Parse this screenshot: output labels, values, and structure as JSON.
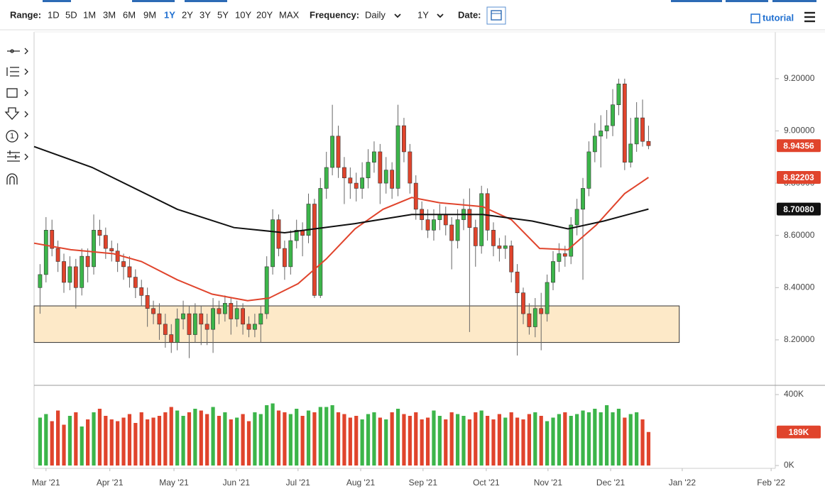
{
  "toolbar": {
    "range_label": "Range:",
    "ranges": [
      "1D",
      "5D",
      "1M",
      "3M",
      "6M",
      "9M",
      "1Y",
      "2Y",
      "3Y",
      "5Y",
      "10Y",
      "20Y",
      "MAX"
    ],
    "frequency_label": "Frequency:",
    "frequency": "Daily",
    "period": "1Y",
    "date_label": "Date:",
    "tutorial": "tutorial"
  },
  "chart_data": {
    "type": "candlestick",
    "x": [
      -2,
      0,
      2,
      4,
      6,
      8,
      10,
      12,
      14,
      16,
      18,
      20,
      22,
      24,
      26,
      28,
      30,
      32,
      34,
      36,
      38,
      40,
      42,
      44,
      46,
      48,
      50,
      52,
      54,
      56,
      58,
      60,
      62,
      64,
      66,
      68,
      70,
      72,
      74,
      76,
      78,
      80,
      82,
      84,
      86,
      88,
      90,
      92,
      94,
      96,
      98,
      100,
      102,
      104,
      106,
      108,
      110,
      112,
      114,
      116,
      118,
      120,
      122,
      124,
      126,
      128,
      130,
      132,
      134,
      136,
      138,
      140,
      142,
      144,
      146,
      148,
      150,
      152,
      154,
      156,
      158,
      160,
      162,
      164,
      166,
      168,
      170,
      172,
      174,
      176,
      178,
      180,
      182,
      184,
      186,
      188,
      190,
      192,
      194,
      196,
      198,
      200,
      202
    ],
    "open": [
      8.4,
      8.45,
      8.62,
      8.55,
      8.5,
      8.42,
      8.48,
      8.4,
      8.52,
      8.48,
      8.62,
      8.6,
      8.55,
      8.54,
      8.5,
      8.48,
      8.44,
      8.4,
      8.37,
      8.32,
      8.3,
      8.26,
      8.22,
      8.19,
      8.28,
      8.3,
      8.22,
      8.3,
      8.26,
      8.24,
      8.32,
      8.3,
      8.34,
      8.28,
      8.32,
      8.26,
      8.24,
      8.26,
      8.3,
      8.48,
      8.66,
      8.55,
      8.48,
      8.58,
      8.62,
      8.6,
      8.72,
      8.37,
      8.78,
      8.86,
      8.98,
      8.86,
      8.82,
      8.8,
      8.78,
      8.82,
      8.88,
      8.92,
      8.8,
      8.85,
      8.78,
      9.02,
      8.92,
      8.8,
      8.7,
      8.66,
      8.62,
      8.66,
      8.68,
      8.64,
      8.58,
      8.66,
      8.7,
      8.63,
      8.56,
      8.76,
      8.62,
      8.56,
      8.55,
      8.56,
      8.46,
      8.38,
      8.3,
      8.25,
      8.32,
      8.3,
      8.42,
      8.5,
      8.53,
      8.52,
      8.64,
      8.7,
      8.78,
      8.92,
      8.98,
      9.0,
      9.02,
      9.1,
      9.18,
      8.88,
      8.95,
      9.05,
      8.96
    ],
    "high": [
      8.49,
      8.67,
      8.66,
      8.58,
      8.53,
      8.52,
      8.51,
      8.55,
      8.55,
      8.68,
      8.66,
      8.63,
      8.58,
      8.57,
      8.53,
      8.52,
      8.47,
      8.43,
      8.4,
      8.35,
      8.34,
      8.3,
      8.26,
      8.32,
      8.35,
      8.33,
      8.34,
      8.33,
      8.3,
      8.36,
      8.35,
      8.37,
      8.36,
      8.35,
      8.34,
      8.29,
      8.3,
      8.33,
      8.52,
      8.7,
      8.68,
      8.58,
      8.62,
      8.66,
      8.65,
      8.76,
      8.74,
      8.82,
      8.92,
      9.1,
      9.02,
      8.9,
      8.86,
      8.84,
      8.88,
      8.93,
      8.96,
      8.95,
      8.9,
      8.88,
      9.1,
      9.05,
      8.95,
      8.83,
      8.73,
      8.7,
      8.7,
      8.72,
      8.71,
      8.67,
      8.7,
      8.74,
      8.78,
      8.66,
      8.79,
      8.78,
      8.65,
      8.59,
      8.6,
      8.58,
      8.49,
      8.4,
      8.34,
      8.36,
      8.38,
      8.45,
      8.54,
      8.57,
      8.56,
      8.67,
      8.74,
      8.82,
      8.96,
      9.03,
      9.06,
      9.08,
      9.16,
      9.2,
      9.2,
      9.05,
      9.11,
      9.12,
      9.02
    ],
    "low": [
      8.3,
      8.42,
      8.52,
      8.46,
      8.38,
      8.39,
      8.32,
      8.37,
      8.42,
      8.45,
      8.56,
      8.51,
      8.5,
      8.46,
      8.43,
      8.4,
      8.36,
      8.33,
      8.25,
      8.26,
      8.2,
      8.17,
      8.15,
      8.16,
      8.24,
      8.13,
      8.19,
      8.18,
      8.18,
      8.15,
      8.26,
      8.27,
      8.22,
      8.25,
      8.22,
      8.21,
      8.21,
      8.19,
      8.28,
      8.45,
      8.52,
      8.43,
      8.45,
      8.55,
      8.52,
      8.57,
      8.36,
      8.36,
      8.74,
      8.83,
      8.82,
      8.72,
      8.74,
      8.73,
      8.74,
      8.78,
      8.84,
      8.72,
      8.76,
      8.74,
      8.75,
      8.88,
      8.76,
      8.66,
      8.62,
      8.59,
      8.58,
      8.62,
      8.6,
      8.47,
      8.55,
      8.62,
      8.23,
      8.48,
      8.53,
      8.58,
      8.52,
      8.5,
      8.51,
      8.42,
      8.14,
      8.26,
      8.22,
      8.21,
      8.16,
      8.27,
      8.39,
      8.46,
      8.48,
      8.49,
      8.6,
      8.43,
      8.75,
      8.88,
      8.86,
      8.97,
      8.98,
      9.06,
      8.85,
      8.86,
      8.92,
      8.94,
      8.93
    ],
    "close": [
      8.45,
      8.62,
      8.55,
      8.5,
      8.42,
      8.48,
      8.4,
      8.52,
      8.48,
      8.62,
      8.6,
      8.55,
      8.54,
      8.5,
      8.48,
      8.44,
      8.4,
      8.37,
      8.32,
      8.3,
      8.26,
      8.22,
      8.19,
      8.28,
      8.3,
      8.22,
      8.3,
      8.26,
      8.24,
      8.32,
      8.3,
      8.34,
      8.28,
      8.32,
      8.26,
      8.24,
      8.26,
      8.3,
      8.48,
      8.66,
      8.55,
      8.48,
      8.58,
      8.62,
      8.6,
      8.72,
      8.37,
      8.78,
      8.86,
      8.98,
      8.86,
      8.82,
      8.8,
      8.78,
      8.82,
      8.88,
      8.92,
      8.8,
      8.85,
      8.78,
      9.02,
      8.92,
      8.8,
      8.7,
      8.66,
      8.62,
      8.66,
      8.68,
      8.64,
      8.58,
      8.66,
      8.7,
      8.63,
      8.56,
      8.76,
      8.62,
      8.56,
      8.55,
      8.56,
      8.46,
      8.38,
      8.3,
      8.25,
      8.32,
      8.3,
      8.42,
      8.5,
      8.53,
      8.52,
      8.64,
      8.7,
      8.78,
      8.92,
      8.98,
      9.0,
      9.02,
      9.1,
      9.18,
      8.88,
      8.95,
      9.05,
      8.96,
      8.94356
    ],
    "volume": [
      270000,
      290000,
      250000,
      310000,
      230000,
      280000,
      300000,
      220000,
      260000,
      300000,
      320000,
      280000,
      260000,
      250000,
      270000,
      290000,
      240000,
      300000,
      260000,
      270000,
      280000,
      300000,
      330000,
      310000,
      280000,
      300000,
      320000,
      310000,
      290000,
      330000,
      280000,
      300000,
      260000,
      270000,
      290000,
      250000,
      300000,
      290000,
      340000,
      350000,
      310000,
      300000,
      290000,
      320000,
      280000,
      310000,
      300000,
      330000,
      330000,
      340000,
      300000,
      290000,
      270000,
      280000,
      260000,
      290000,
      300000,
      270000,
      260000,
      300000,
      320000,
      290000,
      280000,
      300000,
      260000,
      270000,
      310000,
      280000,
      260000,
      300000,
      290000,
      280000,
      260000,
      300000,
      310000,
      280000,
      260000,
      290000,
      270000,
      300000,
      270000,
      260000,
      290000,
      300000,
      280000,
      250000,
      270000,
      290000,
      300000,
      280000,
      290000,
      310000,
      300000,
      320000,
      300000,
      340000,
      300000,
      320000,
      270000,
      290000,
      300000,
      260000,
      189000
    ],
    "up_color": "#3cb54a",
    "down_color": "#e0442c",
    "wick_color": "#666666",
    "series": [
      {
        "color": "#e0442c",
        "x": [
          -4,
          8.3,
          22.6,
          32,
          44,
          55.7,
          67.6,
          74.8,
          84.5,
          94,
          103.6,
          113,
          122.6,
          132,
          146.4,
          156,
          165.5,
          175,
          184.5,
          194,
          202
        ],
        "values": [
          8.57,
          8.545,
          8.53,
          8.5,
          8.43,
          8.375,
          8.35,
          8.36,
          8.415,
          8.51,
          8.625,
          8.7,
          8.745,
          8.725,
          8.71,
          8.66,
          8.55,
          8.545,
          8.64,
          8.76,
          8.82203
        ]
      },
      {
        "color": "#111111",
        "x": [
          -4,
          15.5,
          44,
          63,
          80,
          103.6,
          122.6,
          146.4,
          163,
          175,
          187,
          202
        ],
        "values": [
          8.94,
          8.86,
          8.7,
          8.63,
          8.61,
          8.645,
          8.68,
          8.68,
          8.655,
          8.625,
          8.655,
          8.7008
        ]
      }
    ],
    "zone": {
      "xlim": [
        -4,
        212.3
      ],
      "ylim": [
        8.19,
        8.33
      ],
      "color": "#fde9c8"
    },
    "price_tags": [
      {
        "value": 8.94356,
        "label": "8.94356",
        "color": "#e0442c"
      },
      {
        "value": 8.82203,
        "label": "8.82203",
        "color": "#e0442c"
      },
      {
        "value": 8.7008,
        "label": "8.70080",
        "color": "#111111"
      }
    ],
    "volume_tag": {
      "value": 189000,
      "label": "189K",
      "color": "#e0442c"
    },
    "xlim": [
      -4,
      244.5
    ],
    "xticks": [
      {
        "value": 0,
        "label": "Mar '21"
      },
      {
        "value": 21.4,
        "label": "Apr '21"
      },
      {
        "value": 42.9,
        "label": "May '21"
      },
      {
        "value": 63.8,
        "label": "Jun '21"
      },
      {
        "value": 84.5,
        "label": "Jul '21"
      },
      {
        "value": 105.5,
        "label": "Aug '21"
      },
      {
        "value": 126.4,
        "label": "Sep '21"
      },
      {
        "value": 147.6,
        "label": "Oct '21"
      },
      {
        "value": 168.3,
        "label": "Nov '21"
      },
      {
        "value": 189.3,
        "label": "Dec '21"
      },
      {
        "value": 213.3,
        "label": "Jan '22"
      },
      {
        "value": 243.1,
        "label": "Feb '22"
      }
    ],
    "ylim": [
      8.034,
      9.379
    ],
    "yticks": [
      {
        "value": 8.2,
        "label": "8.20000"
      },
      {
        "value": 8.4,
        "label": "8.40000"
      },
      {
        "value": 8.6,
        "label": "8.60000"
      },
      {
        "value": 8.8,
        "label": "8.80000"
      },
      {
        "value": 9.0,
        "label": "9.00000"
      },
      {
        "value": 9.2,
        "label": "9.20000"
      }
    ],
    "vlim": [
      -16000,
      452000
    ],
    "vticks": [
      {
        "value": 0,
        "label": "0K"
      },
      {
        "value": 400000,
        "label": "400K"
      }
    ]
  }
}
